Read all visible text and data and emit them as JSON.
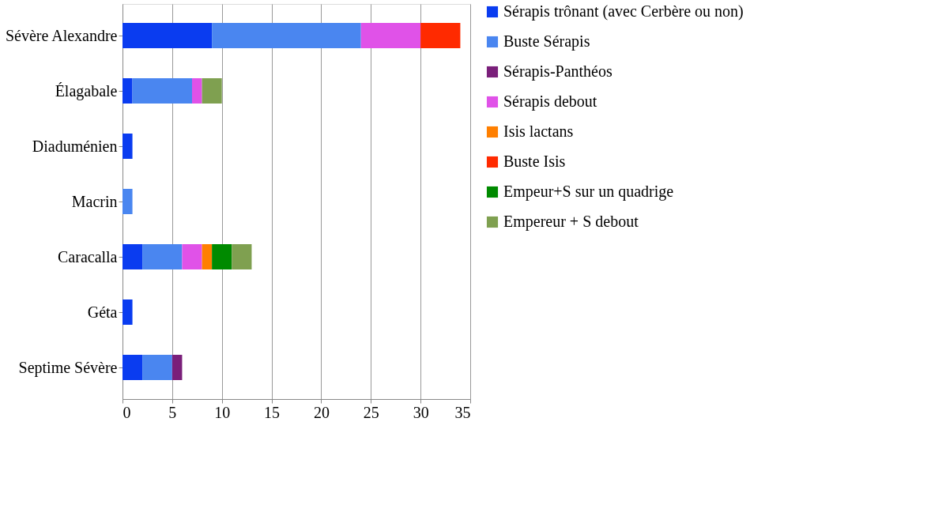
{
  "chart_data": {
    "type": "bar",
    "orientation": "horizontal",
    "stacked": true,
    "categories": [
      "Sévère Alexandre",
      "Élagabale",
      "Diaduménien",
      "Macrin",
      "Caracalla",
      "Géta",
      "Septime Sévère"
    ],
    "series": [
      {
        "name": "Sérapis trônant (avec Cerbère ou non)",
        "color": "#0a3cf0",
        "values": [
          9,
          1,
          1,
          null,
          2,
          1,
          2
        ]
      },
      {
        "name": "Buste Sérapis",
        "color": "#4a86f0",
        "values": [
          15,
          6,
          null,
          1,
          4,
          null,
          3
        ]
      },
      {
        "name": "Sérapis-Panthéos",
        "color": "#7a1f7a",
        "values": [
          null,
          null,
          null,
          null,
          null,
          null,
          1
        ]
      },
      {
        "name": "Sérapis debout",
        "color": "#e052e8",
        "values": [
          6,
          1,
          null,
          null,
          2,
          null,
          null
        ]
      },
      {
        "name": "Isis lactans",
        "color": "#ff7f00",
        "values": [
          null,
          null,
          null,
          null,
          1,
          null,
          null
        ]
      },
      {
        "name": "Buste Isis",
        "color": "#ff2a00",
        "values": [
          4,
          null,
          null,
          null,
          null,
          null,
          null
        ]
      },
      {
        "name": "Empeur+S sur un quadrige",
        "color": "#008a00",
        "values": [
          null,
          null,
          null,
          null,
          2,
          null,
          null
        ]
      },
      {
        "name": "Empereur + S debout",
        "color": "#7fa050",
        "values": [
          null,
          2,
          null,
          null,
          2,
          null,
          null
        ]
      }
    ],
    "xlim": [
      0,
      35
    ],
    "xticks": [
      0,
      5,
      10,
      15,
      20,
      25,
      30,
      35
    ],
    "grid": "x",
    "legend": "right"
  }
}
